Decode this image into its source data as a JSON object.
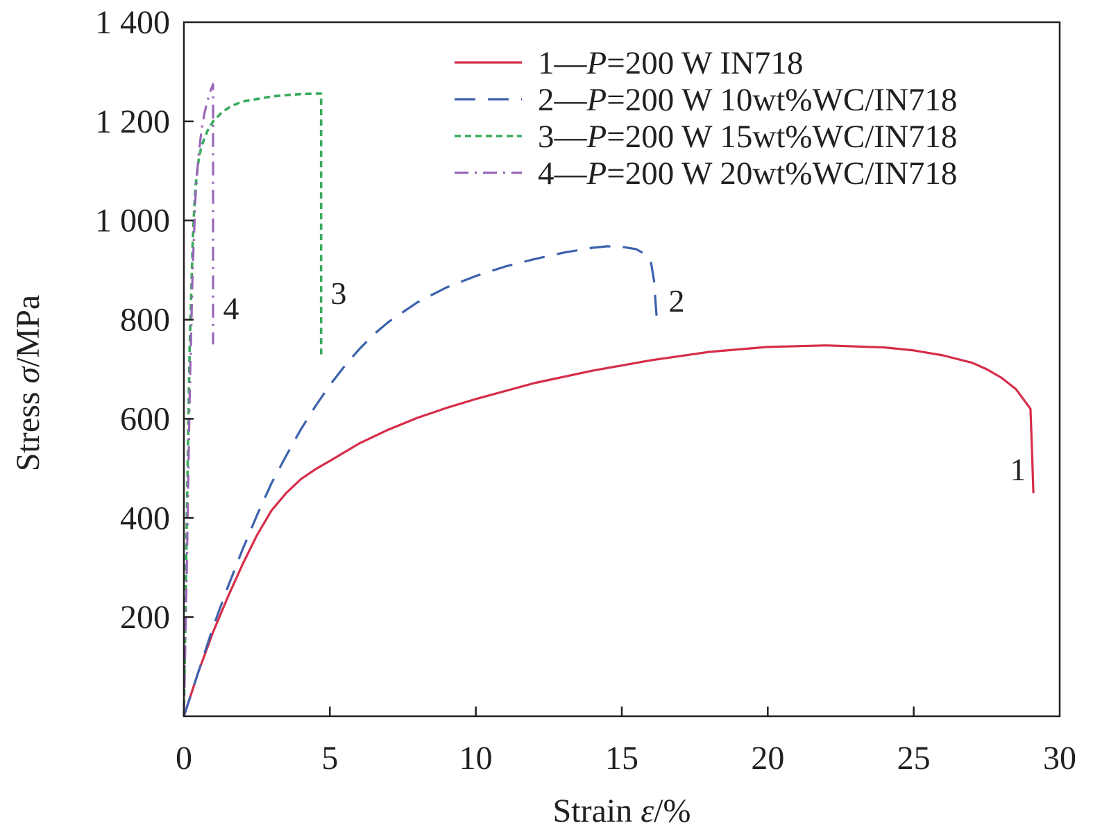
{
  "chart_data": {
    "type": "line",
    "xlabel": "Strain ε/%",
    "xlabel_prefix": "Strain ",
    "xlabel_symbol": "ε",
    "xlabel_unit": "/%",
    "ylabel": "Stress σ/MPa",
    "ylabel_prefix": "Stress ",
    "ylabel_symbol": "σ",
    "ylabel_unit": "/MPa",
    "xlim": [
      0,
      30
    ],
    "ylim": [
      0,
      1400
    ],
    "x_ticks": [
      0,
      5,
      10,
      15,
      20,
      25,
      30
    ],
    "x_tick_labels": [
      "0",
      "5",
      "10",
      "15",
      "20",
      "25",
      "30"
    ],
    "y_ticks": [
      200,
      400,
      600,
      800,
      1000,
      1200,
      1400
    ],
    "y_tick_labels": [
      "200",
      "400",
      "600",
      "800",
      "1 000",
      "1 200",
      "1 400"
    ],
    "grid": false,
    "legend_position": "top-right",
    "series": [
      {
        "name": "1—P=200 W IN718",
        "legend_prefix": "1—",
        "legend_italic": "P",
        "legend_suffix": "=200 W IN718",
        "end_label": "1",
        "color": "#d62d4a",
        "dash": "solid",
        "x": [
          0,
          0.5,
          1,
          1.5,
          2,
          2.5,
          3,
          3.5,
          4,
          4.5,
          5,
          6,
          7,
          8,
          9,
          10,
          12,
          14,
          16,
          18,
          20,
          22,
          24,
          25,
          26,
          27,
          27.5,
          28,
          28.5,
          29,
          29.05,
          29.1
        ],
        "y": [
          0,
          90,
          170,
          240,
          305,
          365,
          415,
          450,
          478,
          498,
          515,
          550,
          578,
          602,
          622,
          640,
          672,
          697,
          718,
          735,
          745,
          748,
          744,
          738,
          728,
          713,
          700,
          683,
          660,
          620,
          540,
          450
        ]
      },
      {
        "name": "2—P=200 W 10wt%WC/IN718",
        "legend_prefix": "2—",
        "legend_italic": "P",
        "legend_suffix": "=200 W 10wt%WC/IN718",
        "end_label": "2",
        "color": "#3b62ad",
        "dash": "long-dash",
        "x": [
          0,
          0.5,
          1,
          1.5,
          2,
          2.5,
          3,
          3.5,
          4,
          4.5,
          5,
          5.5,
          6,
          6.5,
          7,
          8,
          9,
          10,
          11,
          12,
          13,
          14,
          14.5,
          15,
          15.5,
          15.8,
          16,
          16.1,
          16.15,
          16.2
        ],
        "y": [
          0,
          90,
          180,
          260,
          335,
          405,
          470,
          525,
          578,
          625,
          668,
          706,
          740,
          770,
          795,
          835,
          865,
          888,
          907,
          922,
          935,
          945,
          948,
          947,
          942,
          932,
          915,
          880,
          840,
          800
        ]
      },
      {
        "name": "3—P=200 W 15wt%WC/IN718",
        "legend_prefix": "3—",
        "legend_italic": "P",
        "legend_suffix": "=200 W 15wt%WC/IN718",
        "end_label": "3",
        "color": "#3aaa5c",
        "dash": "short-dash",
        "x": [
          0,
          0.1,
          0.2,
          0.3,
          0.35,
          0.4,
          0.5,
          0.6,
          0.8,
          1,
          1.3,
          1.6,
          2,
          2.5,
          3,
          3.5,
          4,
          4.5,
          4.65,
          4.7,
          4.7
        ],
        "y": [
          0,
          400,
          750,
          950,
          1020,
          1070,
          1120,
          1150,
          1180,
          1200,
          1218,
          1230,
          1240,
          1245,
          1250,
          1253,
          1255,
          1256,
          1256,
          1256,
          730
        ]
      },
      {
        "name": "4—P=200 W 20wt%WC/IN718",
        "legend_prefix": "4—",
        "legend_italic": "P",
        "legend_suffix": "=200 W 20wt%WC/IN718",
        "end_label": "4",
        "color": "#9867b8",
        "dash": "dash-dot",
        "x": [
          0,
          0.1,
          0.2,
          0.3,
          0.4,
          0.5,
          0.6,
          0.7,
          0.8,
          0.9,
          1,
          1,
          1
        ],
        "y": [
          0,
          300,
          650,
          900,
          1050,
          1130,
          1180,
          1215,
          1240,
          1260,
          1275,
          1275,
          750
        ]
      }
    ]
  }
}
